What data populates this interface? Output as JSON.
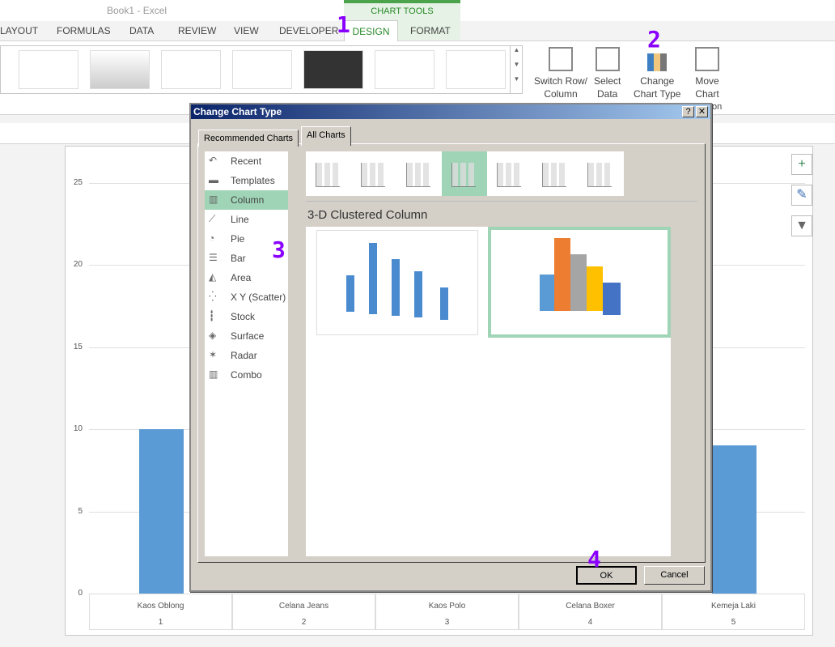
{
  "app": {
    "title": "Book1 - Excel",
    "context_tab_group": "CHART TOOLS"
  },
  "ribbon_tabs": [
    "LAYOUT",
    "FORMULAS",
    "DATA",
    "REVIEW",
    "VIEW",
    "DEVELOPER",
    "DESIGN",
    "FORMAT"
  ],
  "ribbon_buttons": {
    "switch_row_col": [
      "Switch Row/",
      "Column"
    ],
    "select_data": [
      "Select",
      "Data"
    ],
    "change_chart_type": [
      "Change",
      "Chart Type"
    ],
    "move_chart": [
      "Move",
      "Chart"
    ],
    "group_fragment": "on"
  },
  "annotations": [
    "1",
    "2",
    "3",
    "4"
  ],
  "background_chart": {
    "y_ticks": [
      "25",
      "20",
      "15",
      "10",
      "5",
      "0"
    ],
    "categories": [
      "Kaos Oblong",
      "Celana Jeans",
      "Kaos Polo",
      "Celana Boxer",
      "Kemeja Laki"
    ],
    "indices": [
      "1",
      "2",
      "3",
      "4",
      "5"
    ],
    "visible_values": {
      "Kaos Oblong": 10,
      "Kemeja Laki": 9
    },
    "bar_color": "#5b9bd5"
  },
  "chart_side_buttons": [
    "plus-icon",
    "brush-icon",
    "filter-icon"
  ],
  "dialog": {
    "title": "Change Chart Type",
    "help": "?",
    "close": "✕",
    "tabs": [
      "Recommended Charts",
      "All Charts"
    ],
    "active_tab": "All Charts",
    "chart_types": [
      {
        "label": "Recent",
        "icon": "↶"
      },
      {
        "label": "Templates",
        "icon": "▬"
      },
      {
        "label": "Column",
        "icon": "▥"
      },
      {
        "label": "Line",
        "icon": "⟋"
      },
      {
        "label": "Pie",
        "icon": "◔"
      },
      {
        "label": "Bar",
        "icon": "☰"
      },
      {
        "label": "Area",
        "icon": "◭"
      },
      {
        "label": "X Y (Scatter)",
        "icon": "⁛"
      },
      {
        "label": "Stock",
        "icon": "┇"
      },
      {
        "label": "Surface",
        "icon": "◈"
      },
      {
        "label": "Radar",
        "icon": "✶"
      },
      {
        "label": "Combo",
        "icon": "▥"
      }
    ],
    "selected_type": "Column",
    "subtype_title": "3-D Clustered Column",
    "selected_subtype_index": 3,
    "ok": "OK",
    "cancel": "Cancel",
    "accent": "#9fd4b7"
  }
}
